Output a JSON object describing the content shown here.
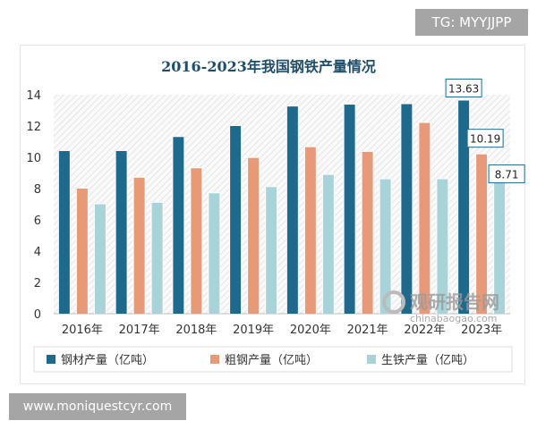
{
  "overlay": {
    "tag": "TG: MYYJJPP",
    "site": "www.moniquestcyr.com"
  },
  "watermark": {
    "name": "观研报告网",
    "url": "chinabaogao.com"
  },
  "colors": {
    "steel": "#1f6a8c",
    "crude": "#e89a78",
    "pig": "#a8d3d9",
    "title": "#1f4e6b"
  },
  "chart_data": {
    "type": "bar",
    "title": "2016-2023年我国钢铁产量情况",
    "categories": [
      "2016年",
      "2017年",
      "2018年",
      "2019年",
      "2020年",
      "2021年",
      "2022年",
      "2023年"
    ],
    "ylim": [
      0,
      14
    ],
    "yticks": [
      0,
      2,
      4,
      6,
      8,
      10,
      12,
      14
    ],
    "grid": false,
    "legend": "bottom",
    "series": [
      {
        "name": "钢材产量（亿吨）",
        "values": [
          10.4,
          10.4,
          11.3,
          12.0,
          13.25,
          13.37,
          13.4,
          13.63
        ]
      },
      {
        "name": "粗钢产量（亿吨）",
        "values": [
          8.0,
          8.7,
          9.3,
          9.96,
          10.65,
          10.35,
          12.2,
          10.19
        ]
      },
      {
        "name": "生铁产量（亿吨）",
        "values": [
          7.0,
          7.1,
          7.7,
          8.1,
          8.88,
          8.6,
          8.6,
          8.71
        ]
      }
    ],
    "data_labels": [
      "13.63",
      "10.19",
      "8.71"
    ]
  }
}
